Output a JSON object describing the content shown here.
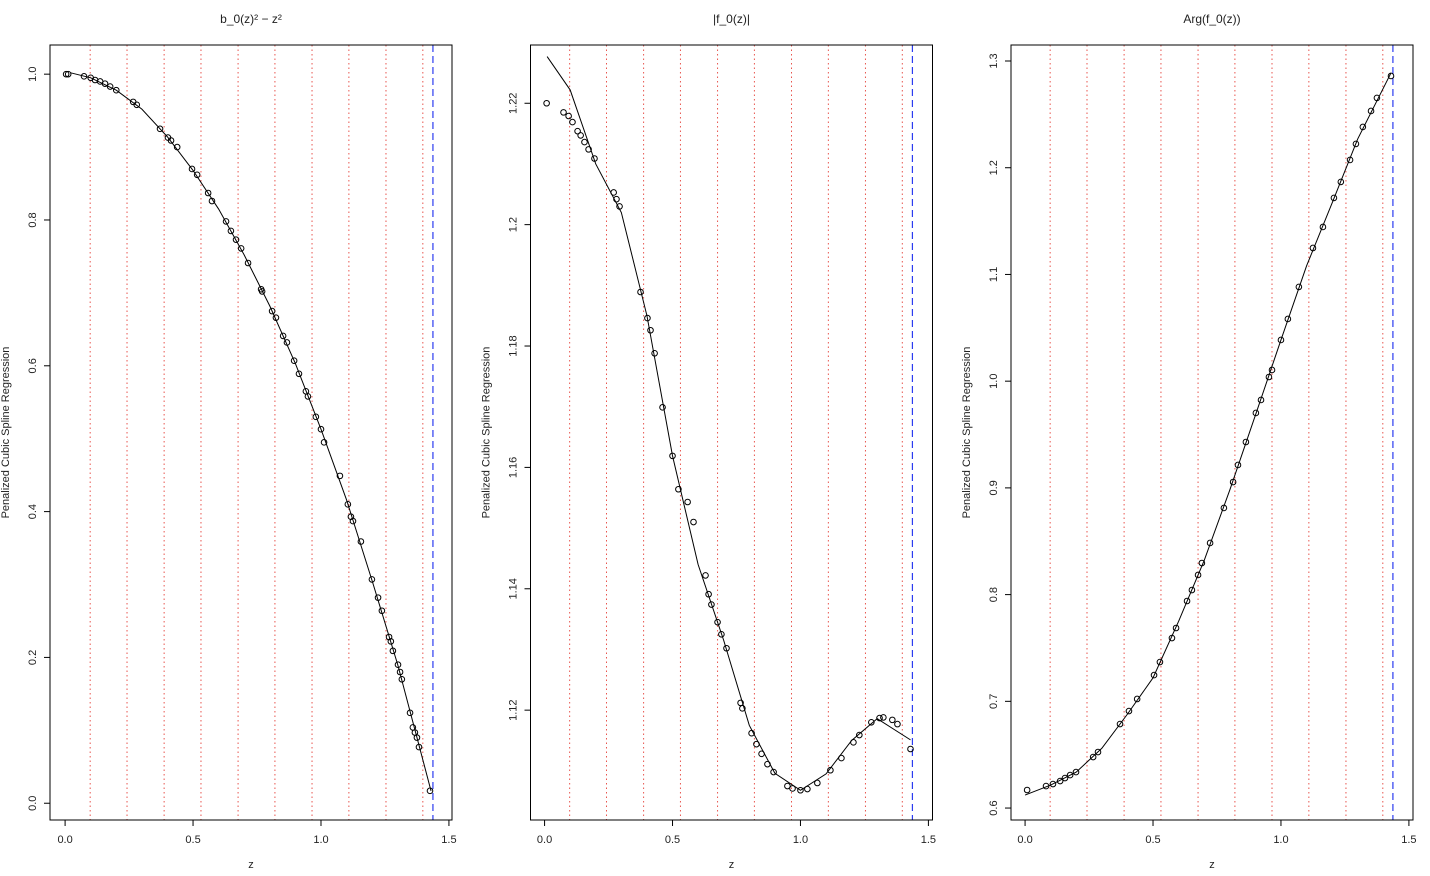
{
  "chart_data": [
    {
      "type": "scatter",
      "title": "b_0(z)² − z²",
      "xlabel": "z",
      "ylabel": "Penalized Cubic Spline Regression",
      "xlim": [
        -0.059,
        1.512
      ],
      "ylim": [
        -0.023,
        1.04
      ],
      "xticks": [
        {
          "value": 0,
          "label": "0.0"
        },
        0.5,
        {
          "value": 1,
          "label": "1.0"
        },
        1.5
      ],
      "yticks": [
        {
          "value": 0,
          "label": "0.0"
        },
        0.2,
        0.4,
        0.6,
        0.8,
        {
          "value": 1,
          "label": "1.0"
        }
      ],
      "knots": [
        0.098,
        0.242,
        0.387,
        0.531,
        0.676,
        0.82,
        0.965,
        1.109,
        1.254,
        1.398
      ],
      "knot_color": "#e8554e",
      "boundary": 1.4375,
      "boundary_color": "#2b3cf0",
      "series": [
        {
          "mode": "points",
          "color": "#000000",
          "x": [
            0.004,
            0.012,
            0.074,
            0.1,
            0.117,
            0.137,
            0.156,
            0.176,
            0.2,
            0.266,
            0.28,
            0.371,
            0.402,
            0.414,
            0.438,
            0.496,
            0.516,
            0.559,
            0.574,
            0.629,
            0.648,
            0.668,
            0.688,
            0.715,
            0.766,
            0.77,
            0.809,
            0.824,
            0.852,
            0.867,
            0.895,
            0.914,
            0.941,
            0.949,
            0.98,
            1.0,
            1.012,
            1.074,
            1.105,
            1.117,
            1.125,
            1.156,
            1.199,
            1.223,
            1.238,
            1.266,
            1.273,
            1.281,
            1.301,
            1.309,
            1.316,
            1.348,
            1.359,
            1.367,
            1.375,
            1.383,
            1.426
          ],
          "values": [
            1.0,
            1.0,
            0.997,
            0.995,
            0.992,
            0.99,
            0.987,
            0.983,
            0.978,
            0.962,
            0.958,
            0.925,
            0.913,
            0.909,
            0.9,
            0.87,
            0.862,
            0.837,
            0.826,
            0.798,
            0.785,
            0.773,
            0.761,
            0.741,
            0.705,
            0.702,
            0.675,
            0.666,
            0.641,
            0.632,
            0.607,
            0.589,
            0.565,
            0.558,
            0.53,
            0.513,
            0.495,
            0.449,
            0.41,
            0.393,
            0.387,
            0.359,
            0.307,
            0.282,
            0.264,
            0.228,
            0.222,
            0.209,
            0.19,
            0.18,
            0.17,
            0.124,
            0.104,
            0.097,
            0.09,
            0.077,
            0.017
          ]
        },
        {
          "mode": "line",
          "color": "#000000",
          "x": [
            0.02,
            0.1,
            0.2,
            0.3,
            0.4,
            0.5,
            0.6,
            0.7,
            0.8,
            0.9,
            1.0,
            1.1,
            1.2,
            1.3,
            1.43
          ],
          "values": [
            1.002,
            0.995,
            0.978,
            0.952,
            0.914,
            0.868,
            0.815,
            0.752,
            0.682,
            0.603,
            0.513,
            0.416,
            0.305,
            0.19,
            0.017
          ]
        }
      ]
    },
    {
      "type": "scatter",
      "title": "|f_0(z)|",
      "xlabel": "z",
      "ylabel": "Penalized Cubic Spline Regression",
      "xlim": [
        -0.055,
        1.516
      ],
      "ylim": [
        1.1019,
        1.2296
      ],
      "xticks": [
        {
          "value": 0,
          "label": "0.0"
        },
        0.5,
        {
          "value": 1,
          "label": "1.0"
        },
        1.5
      ],
      "yticks": [
        1.12,
        1.14,
        1.16,
        1.18,
        1.2,
        1.22
      ],
      "knots": [
        0.098,
        0.242,
        0.387,
        0.531,
        0.676,
        0.82,
        0.965,
        1.109,
        1.254,
        1.398
      ],
      "knot_color": "#e8554e",
      "boundary": 1.4375,
      "boundary_color": "#2b3cf0",
      "series": [
        {
          "mode": "points",
          "color": "#000000",
          "x": [
            0.008,
            0.074,
            0.094,
            0.109,
            0.129,
            0.141,
            0.156,
            0.172,
            0.195,
            0.27,
            0.281,
            0.293,
            0.375,
            0.402,
            0.414,
            0.43,
            0.461,
            0.5,
            0.523,
            0.559,
            0.582,
            0.629,
            0.641,
            0.652,
            0.676,
            0.691,
            0.711,
            0.766,
            0.773,
            0.809,
            0.828,
            0.848,
            0.871,
            0.895,
            0.949,
            0.969,
            1.0,
            1.027,
            1.066,
            1.117,
            1.16,
            1.207,
            1.23,
            1.277,
            1.309,
            1.324,
            1.359,
            1.379,
            1.43
          ],
          "values": [
            1.22,
            1.2185,
            1.2179,
            1.2169,
            1.2154,
            1.2147,
            1.2136,
            1.2124,
            1.2109,
            1.2053,
            1.2042,
            1.203,
            1.1889,
            1.1846,
            1.1826,
            1.1788,
            1.1699,
            1.1619,
            1.1564,
            1.1543,
            1.151,
            1.1422,
            1.1391,
            1.1374,
            1.1345,
            1.1325,
            1.1302,
            1.1212,
            1.1203,
            1.1162,
            1.1144,
            1.1128,
            1.1111,
            1.1098,
            1.1075,
            1.1071,
            1.1068,
            1.107,
            1.108,
            1.1101,
            1.1121,
            1.1147,
            1.1159,
            1.118,
            1.1187,
            1.1188,
            1.1184,
            1.1177,
            1.1136
          ]
        },
        {
          "mode": "line",
          "color": "#000000",
          "x": [
            0.01,
            0.1,
            0.2,
            0.3,
            0.4,
            0.5,
            0.6,
            0.7,
            0.8,
            0.9,
            1.0,
            1.1,
            1.2,
            1.3,
            1.43
          ],
          "values": [
            1.2277,
            1.2222,
            1.21,
            1.202,
            1.185,
            1.1619,
            1.144,
            1.1315,
            1.1175,
            1.1096,
            1.1068,
            1.1095,
            1.115,
            1.1186,
            1.1151
          ]
        }
      ]
    },
    {
      "type": "scatter",
      "title": "Arg(f_0(z))",
      "xlabel": "z",
      "ylabel": "Penalized Cubic Spline Regression",
      "xlim": [
        -0.055,
        1.516
      ],
      "ylim": [
        0.5888,
        1.315
      ],
      "xticks": [
        {
          "value": 0,
          "label": "0.0"
        },
        0.5,
        {
          "value": 1,
          "label": "1.0"
        },
        1.5
      ],
      "yticks": [
        0.6,
        0.7,
        0.8,
        0.9,
        {
          "value": 1,
          "label": "1.0"
        },
        1.1,
        1.2,
        1.3
      ],
      "knots": [
        0.098,
        0.242,
        0.387,
        0.531,
        0.676,
        0.82,
        0.965,
        1.109,
        1.254,
        1.398
      ],
      "knot_color": "#e8554e",
      "boundary": 1.4375,
      "boundary_color": "#2b3cf0",
      "series": [
        {
          "mode": "points",
          "color": "#000000",
          "x": [
            0.008,
            0.082,
            0.109,
            0.137,
            0.156,
            0.176,
            0.199,
            0.266,
            0.285,
            0.371,
            0.406,
            0.438,
            0.504,
            0.527,
            0.574,
            0.59,
            0.633,
            0.652,
            0.676,
            0.691,
            0.723,
            0.777,
            0.813,
            0.832,
            0.863,
            0.902,
            0.922,
            0.953,
            0.965,
            1.0,
            1.027,
            1.07,
            1.125,
            1.164,
            1.207,
            1.234,
            1.27,
            1.293,
            1.32,
            1.352,
            1.375,
            1.43
          ],
          "values": [
            0.6169,
            0.6206,
            0.6225,
            0.6253,
            0.6281,
            0.6309,
            0.6337,
            0.6478,
            0.6525,
            0.6787,
            0.6909,
            0.7022,
            0.7246,
            0.7368,
            0.7593,
            0.7687,
            0.794,
            0.8043,
            0.8184,
            0.8296,
            0.8484,
            0.8812,
            0.9055,
            0.9215,
            0.943,
            0.9702,
            0.9824,
            1.0039,
            1.0105,
            1.0386,
            1.0583,
            1.0883,
            1.1248,
            1.1445,
            1.1717,
            1.1867,
            1.2073,
            1.2223,
            1.2382,
            1.2532,
            1.2654,
            1.286
          ]
        },
        {
          "mode": "line",
          "color": "#000000",
          "x": [
            0.0,
            0.1,
            0.2,
            0.3,
            0.4,
            0.5,
            0.6,
            0.7,
            0.8,
            0.9,
            1.0,
            1.1,
            1.2,
            1.3,
            1.43
          ],
          "values": [
            0.6122,
            0.6215,
            0.6337,
            0.656,
            0.688,
            0.722,
            0.775,
            0.832,
            0.898,
            0.968,
            1.0386,
            1.108,
            1.167,
            1.227,
            1.2888
          ]
        }
      ]
    }
  ]
}
